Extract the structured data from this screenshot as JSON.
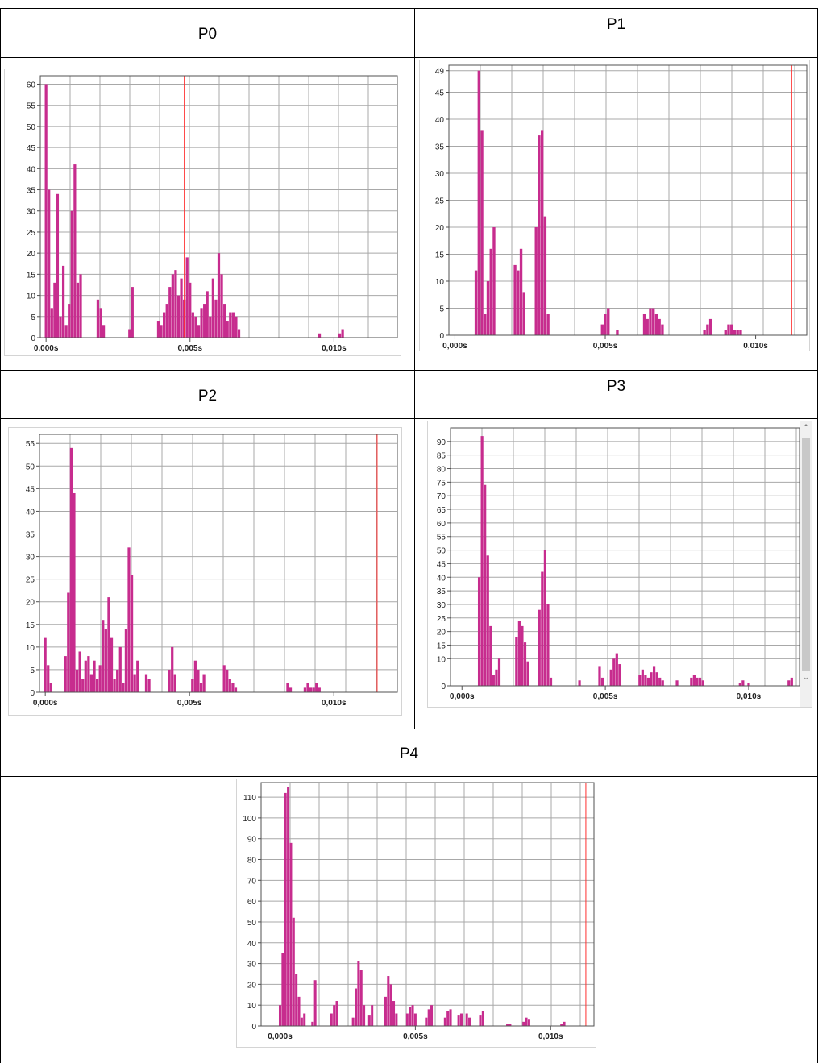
{
  "panels": [
    {
      "label": "P0"
    },
    {
      "label": "P1"
    },
    {
      "label": "P2"
    },
    {
      "label": "P3"
    },
    {
      "label": "P4"
    }
  ],
  "colors": {
    "bar": "#c72c8e",
    "cursor": "#ff3030",
    "grid": "#a8a8a8",
    "axis": "#505050",
    "table_border": "#000000"
  },
  "scrollbar": {
    "up_icon": "chevron-up-icon",
    "down_icon": "chevron-down-icon",
    "up_glyph": "⌃",
    "down_glyph": "⌄"
  },
  "chart_data": [
    {
      "panel": "P0",
      "type": "bar",
      "xlim": [
        -0.0002,
        0.0122
      ],
      "ylim": [
        0,
        62
      ],
      "x_ticks": [
        {
          "value": 0.0,
          "label": "0,000s"
        },
        {
          "value": 0.005,
          "label": "0,005s"
        },
        {
          "value": 0.01,
          "label": "0,010s"
        }
      ],
      "y_ticks": [
        0,
        5,
        10,
        15,
        20,
        25,
        30,
        35,
        40,
        45,
        50,
        55,
        60
      ],
      "cursor_x": 0.0048,
      "grid": true,
      "x": [
        0.0,
        0.0001,
        0.0002,
        0.0003,
        0.0004,
        0.0005,
        0.0006,
        0.0007,
        0.0008,
        0.0009,
        0.001,
        0.0011,
        0.0012,
        0.0018,
        0.0019,
        0.002,
        0.0029,
        0.003,
        0.0039,
        0.004,
        0.0041,
        0.0042,
        0.0043,
        0.0044,
        0.0045,
        0.0046,
        0.0047,
        0.0048,
        0.0049,
        0.005,
        0.0051,
        0.0052,
        0.0053,
        0.0054,
        0.0055,
        0.0056,
        0.0057,
        0.0058,
        0.0059,
        0.006,
        0.0061,
        0.0062,
        0.0063,
        0.0064,
        0.0065,
        0.0066,
        0.0067,
        0.0095,
        0.0102,
        0.0103
      ],
      "y": [
        60,
        35,
        7,
        13,
        34,
        5,
        17,
        3,
        8,
        30,
        41,
        13,
        15,
        9,
        7,
        3,
        2,
        12,
        4,
        3,
        6,
        8,
        12,
        15,
        16,
        10,
        14,
        9,
        19,
        13,
        6,
        5,
        3,
        7,
        8,
        11,
        5,
        14,
        9,
        20,
        15,
        8,
        4,
        6,
        6,
        5,
        2,
        1,
        1,
        2
      ]
    },
    {
      "panel": "P1",
      "type": "bar",
      "xlim": [
        -0.0002,
        0.0117
      ],
      "ylim": [
        0,
        50
      ],
      "x_ticks": [
        {
          "value": 0.0,
          "label": "0,000s"
        },
        {
          "value": 0.005,
          "label": "0,005s"
        },
        {
          "value": 0.01,
          "label": "0,010s"
        }
      ],
      "y_ticks": [
        0,
        5,
        10,
        15,
        20,
        25,
        30,
        35,
        40,
        45,
        49
      ],
      "cursor_x": 0.0112,
      "grid": true,
      "x": [
        0.0007,
        0.0008,
        0.0009,
        0.001,
        0.0011,
        0.0012,
        0.0013,
        0.002,
        0.0021,
        0.0022,
        0.0023,
        0.0027,
        0.0028,
        0.0029,
        0.003,
        0.0031,
        0.0049,
        0.005,
        0.0051,
        0.0054,
        0.0063,
        0.0064,
        0.0065,
        0.0066,
        0.0067,
        0.0068,
        0.0069,
        0.0083,
        0.0084,
        0.0085,
        0.009,
        0.0091,
        0.0092,
        0.0093,
        0.0094,
        0.0095
      ],
      "y": [
        12,
        49,
        38,
        4,
        10,
        16,
        20,
        13,
        12,
        16,
        8,
        20,
        37,
        38,
        22,
        4,
        2,
        4,
        5,
        1,
        4,
        3,
        5,
        5,
        4,
        3,
        2,
        1,
        2,
        3,
        1,
        2,
        2,
        1,
        1,
        1
      ]
    },
    {
      "panel": "P2",
      "type": "bar",
      "xlim": [
        -0.0002,
        0.0122
      ],
      "ylim": [
        0,
        57
      ],
      "x_ticks": [
        {
          "value": 0.0,
          "label": "0,000s"
        },
        {
          "value": 0.005,
          "label": "0,005s"
        },
        {
          "value": 0.01,
          "label": "0,010s"
        }
      ],
      "y_ticks": [
        0,
        5,
        10,
        15,
        20,
        25,
        30,
        35,
        40,
        45,
        50,
        55
      ],
      "cursor_x": 0.0115,
      "grid": true,
      "x": [
        0.0,
        0.0001,
        0.0002,
        0.0007,
        0.0008,
        0.0009,
        0.001,
        0.0011,
        0.0012,
        0.0013,
        0.0014,
        0.0015,
        0.0016,
        0.0017,
        0.0018,
        0.0019,
        0.002,
        0.0021,
        0.0022,
        0.0023,
        0.0024,
        0.0025,
        0.0026,
        0.0027,
        0.0028,
        0.0029,
        0.003,
        0.0031,
        0.0032,
        0.0035,
        0.0036,
        0.0043,
        0.0044,
        0.0045,
        0.0051,
        0.0052,
        0.0053,
        0.0054,
        0.0055,
        0.0062,
        0.0063,
        0.0064,
        0.0065,
        0.0066,
        0.0084,
        0.0085,
        0.009,
        0.0091,
        0.0092,
        0.0093,
        0.0094,
        0.0095
      ],
      "y": [
        12,
        6,
        2,
        8,
        22,
        54,
        44,
        5,
        9,
        3,
        7,
        8,
        4,
        7,
        3,
        6,
        16,
        14,
        21,
        12,
        3,
        5,
        10,
        2,
        14,
        32,
        26,
        4,
        7,
        4,
        3,
        5,
        10,
        4,
        3,
        7,
        5,
        2,
        4,
        6,
        5,
        3,
        2,
        1,
        2,
        1,
        1,
        2,
        1,
        1,
        2,
        1
      ]
    },
    {
      "panel": "P3",
      "type": "bar",
      "xlim": [
        -0.0004,
        0.0118
      ],
      "ylim": [
        0,
        95
      ],
      "x_ticks": [
        {
          "value": 0.0,
          "label": "0,000s"
        },
        {
          "value": 0.005,
          "label": "0,005s"
        },
        {
          "value": 0.01,
          "label": "0,010s"
        }
      ],
      "y_ticks": [
        0,
        10,
        15,
        20,
        25,
        30,
        35,
        40,
        45,
        50,
        55,
        60,
        65,
        70,
        75,
        80,
        85,
        90
      ],
      "grid": true,
      "x": [
        0.0006,
        0.0007,
        0.0008,
        0.0009,
        0.001,
        0.0011,
        0.0012,
        0.0013,
        0.0019,
        0.002,
        0.0021,
        0.0022,
        0.0023,
        0.0027,
        0.0028,
        0.0029,
        0.003,
        0.0031,
        0.0041,
        0.0048,
        0.0049,
        0.0052,
        0.0053,
        0.0054,
        0.0055,
        0.0062,
        0.0063,
        0.0064,
        0.0065,
        0.0066,
        0.0067,
        0.0068,
        0.0069,
        0.007,
        0.0075,
        0.008,
        0.0081,
        0.0082,
        0.0083,
        0.0084,
        0.0097,
        0.0098,
        0.01,
        0.0114,
        0.0115
      ],
      "y": [
        40,
        92,
        74,
        48,
        22,
        4,
        6,
        10,
        18,
        24,
        22,
        16,
        9,
        28,
        42,
        50,
        30,
        3,
        2,
        7,
        3,
        6,
        10,
        12,
        8,
        4,
        6,
        4,
        3,
        5,
        7,
        5,
        3,
        2,
        2,
        3,
        4,
        3,
        3,
        2,
        1,
        2,
        1,
        2,
        3
      ]
    },
    {
      "panel": "P4",
      "type": "bar",
      "xlim": [
        -0.0007,
        0.0116
      ],
      "ylim": [
        0,
        117
      ],
      "x_ticks": [
        {
          "value": 0.0,
          "label": "0,000s"
        },
        {
          "value": 0.005,
          "label": "0,005s"
        },
        {
          "value": 0.01,
          "label": "0,010s"
        }
      ],
      "y_ticks": [
        0,
        10,
        20,
        30,
        40,
        50,
        60,
        70,
        80,
        90,
        100,
        110
      ],
      "cursor_x": 0.0113,
      "grid": true,
      "x": [
        0.0,
        0.0001,
        0.0002,
        0.0003,
        0.0004,
        0.0005,
        0.0006,
        0.0007,
        0.0008,
        0.0009,
        0.0012,
        0.0013,
        0.0019,
        0.002,
        0.0021,
        0.0027,
        0.0028,
        0.0029,
        0.003,
        0.0031,
        0.0033,
        0.0034,
        0.0039,
        0.004,
        0.0041,
        0.0042,
        0.0043,
        0.0047,
        0.0048,
        0.0049,
        0.005,
        0.0054,
        0.0055,
        0.0056,
        0.0061,
        0.0062,
        0.0063,
        0.0066,
        0.0067,
        0.0069,
        0.007,
        0.0074,
        0.0075,
        0.0084,
        0.0085,
        0.009,
        0.0091,
        0.0092,
        0.0104,
        0.0105
      ],
      "y": [
        10,
        35,
        112,
        115,
        88,
        52,
        25,
        14,
        4,
        6,
        2,
        22,
        6,
        10,
        12,
        4,
        18,
        31,
        27,
        10,
        5,
        10,
        14,
        24,
        20,
        12,
        6,
        6,
        9,
        10,
        6,
        4,
        8,
        10,
        4,
        7,
        8,
        5,
        6,
        6,
        4,
        5,
        7,
        1,
        1,
        2,
        4,
        3,
        1,
        2
      ]
    }
  ]
}
